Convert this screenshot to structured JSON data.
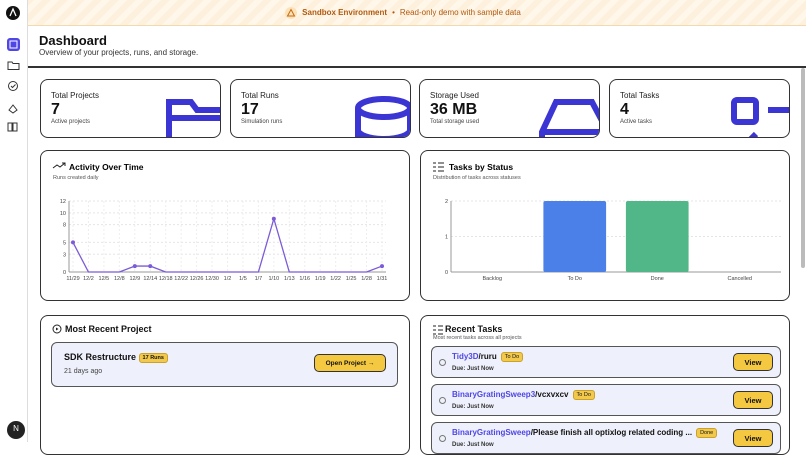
{
  "banner": {
    "title": "Sandbox Environment",
    "separator": "•",
    "message": "Read-only demo with sample data"
  },
  "user": {
    "initial": "N"
  },
  "header": {
    "title": "Dashboard",
    "subtitle": "Overview of your projects, runs, and storage."
  },
  "stats": [
    {
      "label": "Total Projects",
      "value": "7",
      "sub": "Active projects"
    },
    {
      "label": "Total Runs",
      "value": "17",
      "sub": "Simulation runs"
    },
    {
      "label": "Storage Used",
      "value": "36 MB",
      "sub": "Total storage used"
    },
    {
      "label": "Total Tasks",
      "value": "4",
      "sub": "Active tasks"
    }
  ],
  "chart_data": [
    {
      "type": "line",
      "title": "Activity Over Time",
      "subtitle": "Runs created daily",
      "color": "#7b5bd6",
      "categories": [
        "11/29",
        "12/2",
        "12/5",
        "12/8",
        "12/9",
        "12/14",
        "12/18",
        "12/22",
        "12/26",
        "12/30",
        "1/2",
        "1/5",
        "1/7",
        "1/10",
        "1/13",
        "1/16",
        "1/19",
        "1/22",
        "1/25",
        "1/28",
        "1/31"
      ],
      "values": [
        5,
        0,
        0,
        0,
        1,
        1,
        0,
        0,
        0,
        0,
        0,
        0,
        0,
        9,
        0,
        0,
        0,
        0,
        0,
        0,
        1
      ],
      "ylim": [
        0,
        12
      ],
      "yticks": [
        0,
        3,
        5,
        8,
        10,
        12
      ],
      "grid": true
    },
    {
      "type": "bar",
      "title": "Tasks by Status",
      "subtitle": "Distribution of tasks across statuses",
      "categories": [
        "Backlog",
        "To Do",
        "Done",
        "Cancelled"
      ],
      "values": [
        0,
        2,
        2,
        0
      ],
      "colors": [
        "#9ca3af",
        "#4a80e8",
        "#52b788",
        "#9ca3af"
      ],
      "ylim": [
        0,
        2
      ],
      "yticks": [
        0,
        1,
        2
      ],
      "grid": true
    }
  ],
  "recent_project": {
    "heading": "Most Recent Project",
    "name": "SDK Restructure",
    "badge": "17 Runs",
    "age": "21 days ago",
    "button": "Open Project →"
  },
  "recent_tasks": {
    "heading": "Recent Tasks",
    "subtitle": "Most recent tasks across all projects",
    "button": "View",
    "items": [
      {
        "project": "Tidy3D",
        "name": "/ruru",
        "status": "To Do",
        "due": "Due: Just Now"
      },
      {
        "project": "BinaryGratingSweep3",
        "name": "/vcxvxcv",
        "status": "To Do",
        "due": "Due: Just Now"
      },
      {
        "project": "BinaryGratingSweep",
        "name": "/Please finish all optixlog related coding ...",
        "status": "Done",
        "due": "Due: Just Now"
      }
    ]
  }
}
